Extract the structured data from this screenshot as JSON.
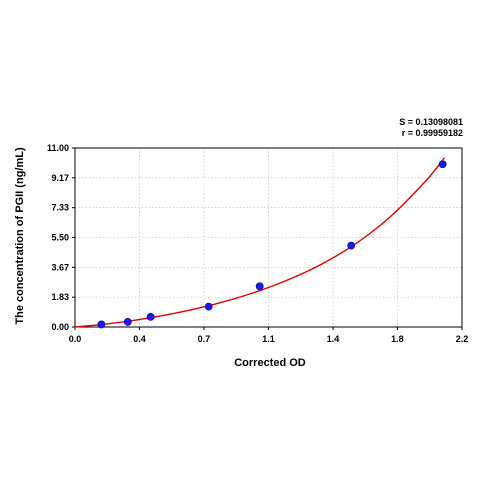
{
  "chart_data": {
    "type": "scatter",
    "title": "",
    "xlabel": "Corrected OD",
    "ylabel": "The concentration of PGII (ng/mL)",
    "xlim": [
      0.0,
      2.2
    ],
    "ylim": [
      0.0,
      11.0
    ],
    "x_ticks": [
      "0.0",
      "0.4",
      "0.7",
      "1.1",
      "1.4",
      "1.8",
      "2.2"
    ],
    "x_tick_values": [
      0.0,
      0.367,
      0.733,
      1.1,
      1.467,
      1.833,
      2.2
    ],
    "y_ticks": [
      "0.00",
      "1.83",
      "3.67",
      "5.50",
      "7.33",
      "9.17",
      "11.00"
    ],
    "y_tick_values": [
      0.0,
      1.833,
      3.667,
      5.5,
      7.333,
      9.167,
      11.0
    ],
    "grid": true,
    "series": [
      {
        "values_x": [
          0.15,
          0.3,
          0.43,
          0.76,
          1.05,
          1.57,
          2.09
        ],
        "values_y": [
          0.156,
          0.312,
          0.625,
          1.25,
          2.5,
          5.0,
          10.0
        ],
        "marker_color": "#1a1aee",
        "fit_color": "#e00000",
        "fit_curve": {
          "x": [
            0.0,
            0.2,
            0.4,
            0.6,
            0.8,
            1.0,
            1.2,
            1.4,
            1.6,
            1.8,
            2.0,
            2.1
          ],
          "y": [
            0.0,
            0.21,
            0.52,
            0.92,
            1.42,
            2.05,
            2.85,
            3.85,
            5.15,
            6.85,
            9.05,
            10.4
          ]
        }
      }
    ],
    "stats": {
      "s_text": "S = 0.13098081",
      "r_text": "r = 0.99959182"
    }
  }
}
